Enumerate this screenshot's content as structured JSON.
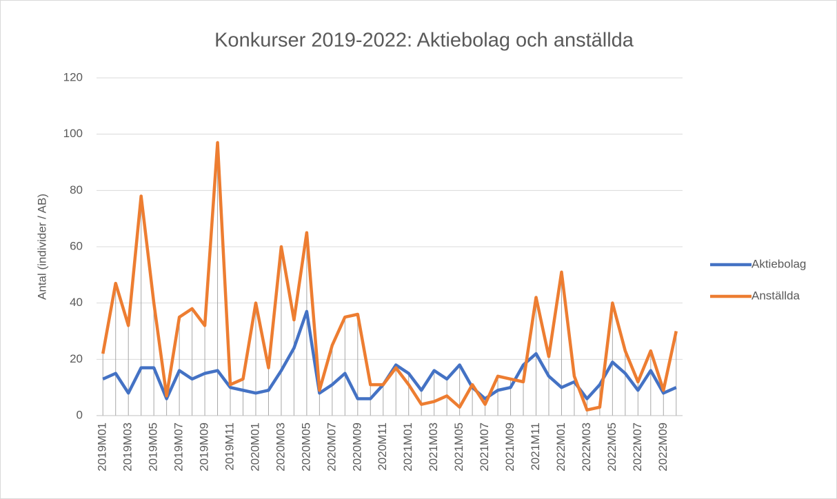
{
  "chart_data": {
    "type": "line",
    "title": "Konkurser 2019-2022: Aktiebolag och anställda",
    "y_label": "Antal (individer / AB)",
    "categories": [
      "2019M01",
      null,
      "2019M03",
      null,
      "2019M05",
      null,
      "2019M07",
      null,
      "2019M09",
      null,
      "2019M11",
      null,
      "2020M01",
      null,
      "2020M03",
      null,
      "2020M05",
      null,
      "2020M07",
      null,
      "2020M09",
      null,
      "2020M11",
      null,
      "2021M01",
      null,
      "2021M03",
      null,
      "2021M05",
      null,
      "2021M07",
      null,
      "2021M09",
      null,
      "2021M11",
      null,
      "2022M01",
      null,
      "2022M03",
      null,
      "2022M05",
      null,
      "2022M07",
      null,
      "2022M09",
      null
    ],
    "series": [
      {
        "name": "Aktiebolag",
        "color": "#4472c4",
        "values": [
          13,
          15,
          8,
          17,
          17,
          6,
          16,
          13,
          15,
          16,
          10,
          9,
          8,
          9,
          16,
          24,
          37,
          8,
          11,
          15,
          6,
          6,
          11,
          18,
          15,
          9,
          16,
          13,
          18,
          10,
          6,
          9,
          10,
          18,
          22,
          14,
          10,
          12,
          6,
          11,
          19,
          15,
          9,
          16,
          8,
          10
        ]
      },
      {
        "name": "Anställda",
        "color": "#ed7d31",
        "values": [
          22,
          47,
          32,
          78,
          40,
          7,
          35,
          38,
          32,
          97,
          11,
          13,
          40,
          17,
          60,
          34,
          65,
          9,
          25,
          35,
          36,
          11,
          11,
          17,
          11,
          4,
          5,
          7,
          3,
          11,
          4,
          14,
          13,
          12,
          42,
          21,
          51,
          14,
          2,
          3,
          40,
          23,
          12,
          23,
          9,
          30
        ]
      }
    ],
    "ylim": [
      0,
      120
    ],
    "yticks": [
      0,
      20,
      40,
      60,
      80,
      100,
      120
    ],
    "grid": true,
    "drop_lines": true,
    "legend": "right"
  }
}
